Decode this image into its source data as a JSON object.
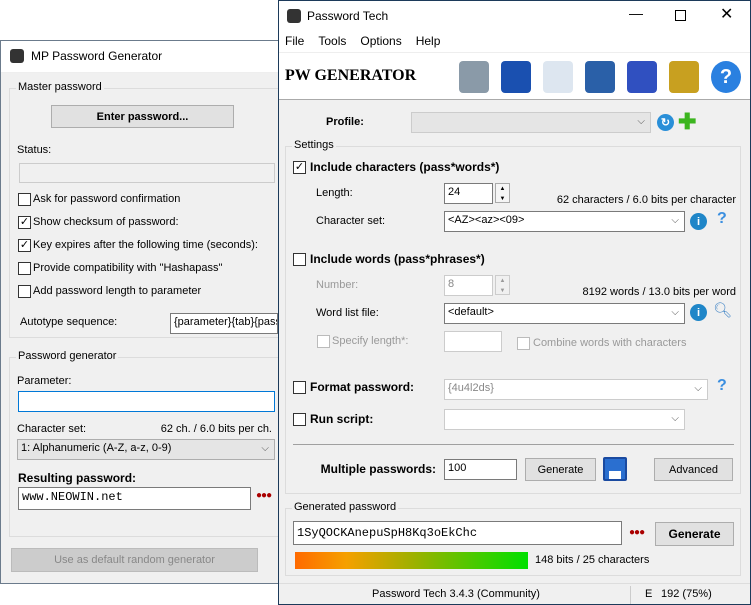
{
  "mp": {
    "title": "MP Password Generator",
    "master_group": "Master password",
    "enter_btn": "Enter password...",
    "status_label": "Status:",
    "status_value": "",
    "checks": [
      {
        "label": "Ask for password confirmation",
        "checked": false
      },
      {
        "label": "Show checksum of password:",
        "checked": true
      },
      {
        "label": "Key expires after the following time (seconds):",
        "checked": true
      },
      {
        "label": "Provide compatibility with \"Hashapass\"",
        "checked": false
      },
      {
        "label": "Add password length to parameter",
        "checked": false
      }
    ],
    "autotype_label": "Autotype sequence:",
    "autotype_value": "{parameter}{tab}{password}",
    "gen_group": "Password generator",
    "param_label": "Parameter:",
    "param_value": "",
    "charset_label": "Character set:",
    "charset_info": "62 ch. / 6.0 bits per ch.",
    "charset_value": "1: Alphanumeric (A-Z, a-z, 0-9)",
    "result_label": "Resulting password:",
    "result_value": "www.NEOWIN.net",
    "default_btn": "Use as default random generator"
  },
  "pt": {
    "title": "Password Tech",
    "menu": [
      "File",
      "Tools",
      "Options",
      "Help"
    ],
    "banner": "PW GENERATOR",
    "toolbar_icons": [
      "database-lock-icon",
      "wizard-hat-icon",
      "document-icon",
      "padlock-icon",
      "eraser-icon",
      "tools-icon",
      "help-icon"
    ],
    "profile_label": "Profile:",
    "profile_value": "",
    "settings_group": "Settings",
    "include_chars": {
      "label": "Include characters (pass*words*)",
      "checked": true
    },
    "length_label": "Length:",
    "length_value": "24",
    "chars_info": "62 characters / 6.0 bits per character",
    "charset_label": "Character set:",
    "charset_value": "<AZ><az><09>",
    "include_words": {
      "label": "Include words (pass*phrases*)",
      "checked": false
    },
    "number_label": "Number:",
    "number_value": "8",
    "words_info": "8192 words / 13.0 bits per word",
    "wordlist_label": "Word list file:",
    "wordlist_value": "<default>",
    "specify_length": "Specify length*:",
    "combine": "Combine words with characters",
    "format": {
      "label": "Format password:",
      "checked": false,
      "value": "{4u4l2ds}"
    },
    "script": {
      "label": "Run script:",
      "checked": false,
      "value": ""
    },
    "multiple_label": "Multiple passwords:",
    "multiple_value": "100",
    "generate_multi": "Generate",
    "advanced": "Advanced",
    "generated_group": "Generated password",
    "password": "1SyQOCKAnepuSpH8Kq3oEkChc",
    "generate": "Generate",
    "strength_info": "148 bits / 25 characters",
    "status_text": "Password Tech 3.4.3 (Community)",
    "status_e": "E",
    "status_entropy": "192 (75%)"
  }
}
